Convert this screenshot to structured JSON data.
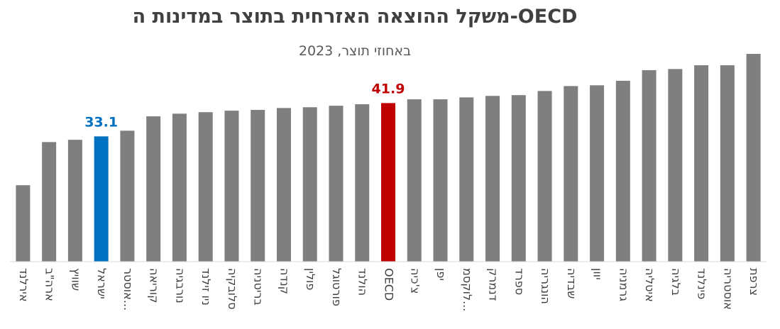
{
  "chart_data": {
    "type": "bar",
    "title": "משקל ההוצאה האזרחית בתוצר במדינות ה-OECD",
    "subtitle": "באחוזי תוצר, 2023",
    "categories": [
      "אירלנד",
      "ארה\"ב",
      "שוויץ",
      "ישראל",
      "אוסטר...",
      "קוריאה",
      "נורבגיה",
      "ניו זילנד",
      "סלובקיה",
      "בריטניה",
      "קנדה",
      "פולין",
      "פורטוגל",
      "הולנד",
      "OECD",
      "צ'כיה",
      "יפן",
      "לוקסמ...",
      "דנמרק",
      "ספרד",
      "הונגריה",
      "שבדיה",
      "יוון",
      "גרמניה",
      "איטליה",
      "בלגיה",
      "פינלנד",
      "אוסטריה",
      "צרפת"
    ],
    "values": [
      20.2,
      31.6,
      32.2,
      33.1,
      34.6,
      38.4,
      39.1,
      39.5,
      39.9,
      40.1,
      40.6,
      40.8,
      41.2,
      41.6,
      41.9,
      42.9,
      42.9,
      43.4,
      43.8,
      44.0,
      45.1,
      46.4,
      46.6,
      47.8,
      50.6,
      50.9,
      51.9,
      51.9,
      54.9
    ],
    "color": "#7f7f7f",
    "colors": [
      "#7f7f7f",
      "#7f7f7f",
      "#7f7f7f",
      "#0070c0",
      "#7f7f7f",
      "#7f7f7f",
      "#7f7f7f",
      "#7f7f7f",
      "#7f7f7f",
      "#7f7f7f",
      "#7f7f7f",
      "#7f7f7f",
      "#7f7f7f",
      "#7f7f7f",
      "#c00000",
      "#7f7f7f",
      "#7f7f7f",
      "#7f7f7f",
      "#7f7f7f",
      "#7f7f7f",
      "#7f7f7f",
      "#7f7f7f",
      "#7f7f7f",
      "#7f7f7f",
      "#7f7f7f",
      "#7f7f7f",
      "#7f7f7f",
      "#7f7f7f",
      "#7f7f7f"
    ]
  }
}
